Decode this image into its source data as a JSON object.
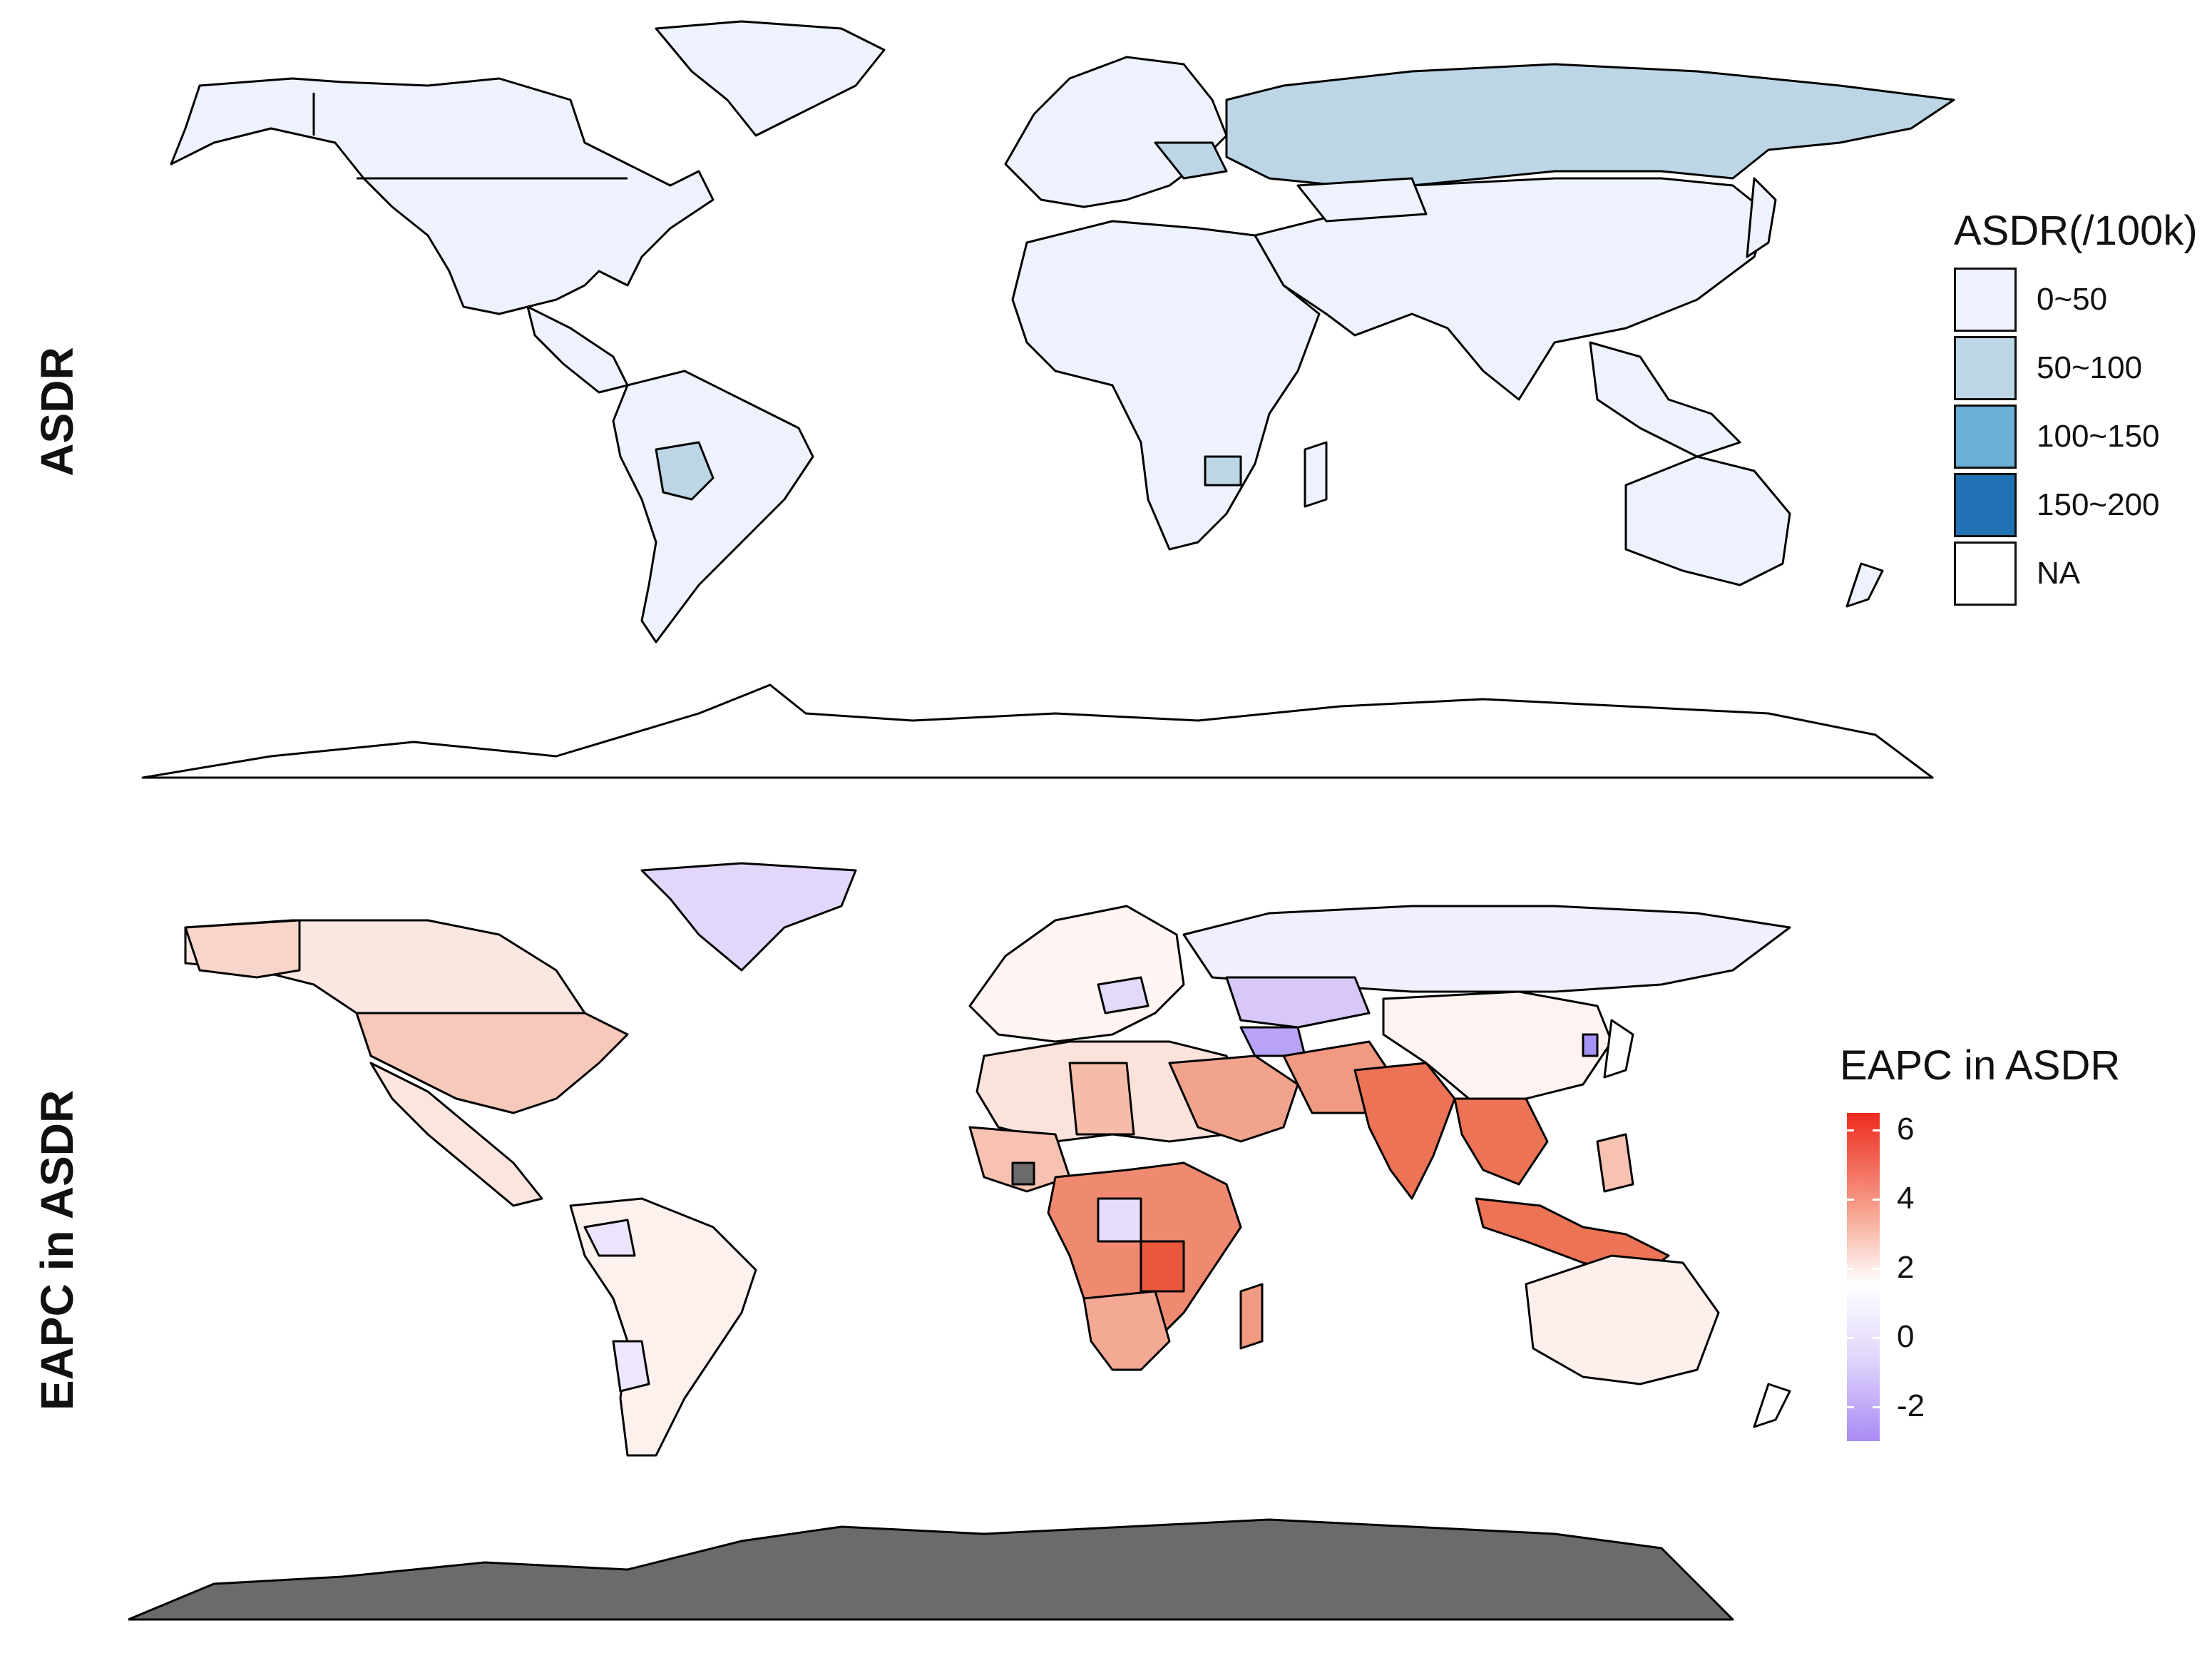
{
  "top_panel": {
    "row_label": "ASDR",
    "legend": {
      "title": "ASDR(/100k)",
      "items": [
        {
          "label": "0~50",
          "color": "#eef2fd"
        },
        {
          "label": "50~100",
          "color": "#bcd6e6"
        },
        {
          "label": "100~150",
          "color": "#6baed6"
        },
        {
          "label": "150~200",
          "color": "#2171b5"
        },
        {
          "label": "NA",
          "color": "#ffffff"
        }
      ]
    }
  },
  "bottom_panel": {
    "row_label": "EAPC in ASDR",
    "legend": {
      "title": "EAPC in ASDR",
      "ticks": [
        "6",
        "4",
        "2",
        "0",
        "-2"
      ],
      "range": [
        -3,
        6.5
      ],
      "colors": {
        "high": "#ee2a1e",
        "mid": "#ffffff",
        "low": "#a98bf5"
      }
    },
    "na_color": "#6b6b6b"
  },
  "map_colors": {
    "border": "#000000",
    "asdr_base": "#eef2fd",
    "asdr_russia": "#bcd6e6",
    "eapc_na": "#6b6b6b"
  }
}
